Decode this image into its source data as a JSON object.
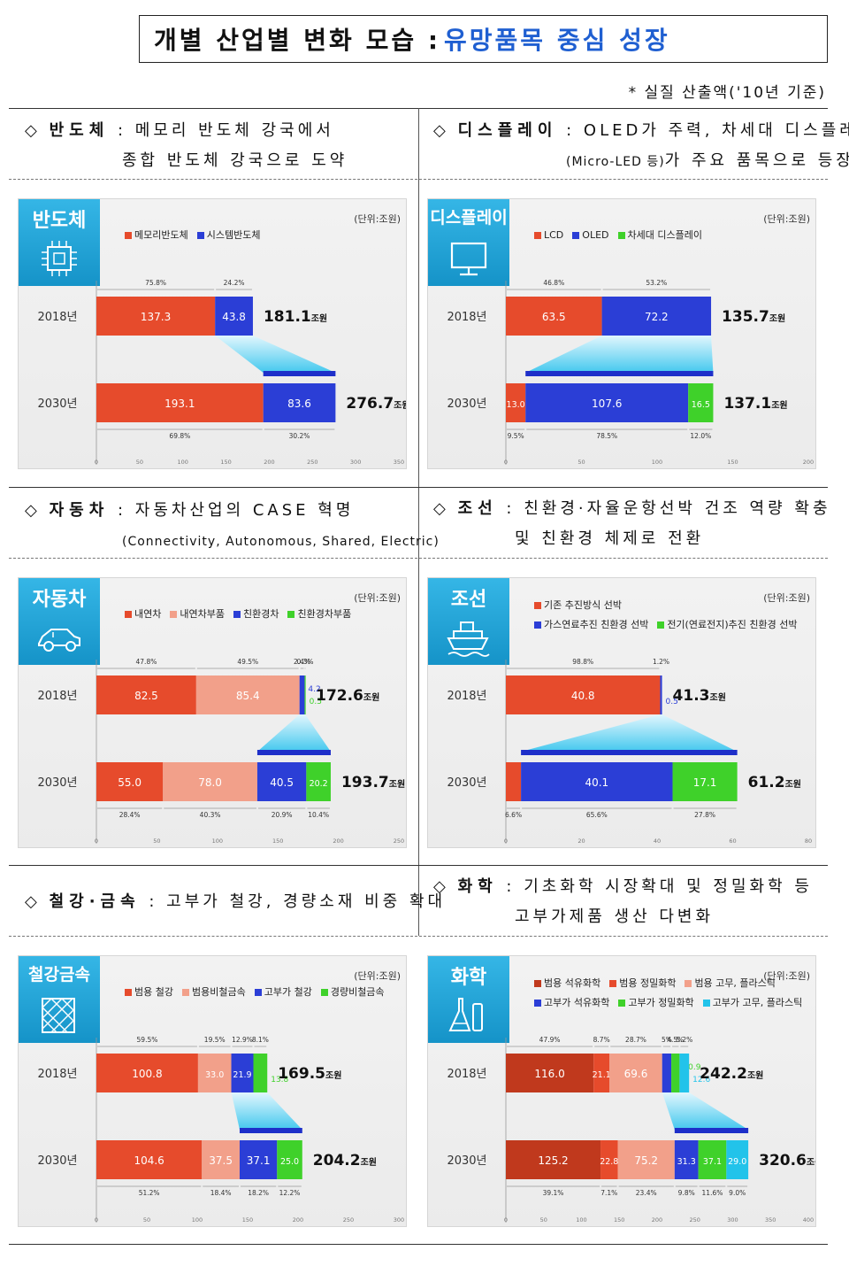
{
  "header": {
    "title_main": "개별 산업별 변화 모습 :",
    "title_highlight": "유망품목 중심 성장",
    "note": "* 실질 산출액('10년 기준)"
  },
  "colors": {
    "accent": "#1f5fd1",
    "badge": "#1a9fd6",
    "red": "#e64b2c",
    "salmon": "#f2a08a",
    "blue": "#2b3ed6",
    "green": "#3fd12a",
    "cyan": "#22c3ea",
    "darkred": "#c0391d"
  },
  "sections": [
    {
      "name": "반도체",
      "line1": "메모리 반도체 강국에서",
      "line2": "종합 반도체 강국으로 도약"
    },
    {
      "name": "디스플레이",
      "line1": "OLED가 주력, 차세대 디스플레이",
      "line2_small": "(Micro-LED 등)",
      "line2": "가 주요 품목으로 등장"
    },
    {
      "name": "자동차",
      "line1": "자동차산업의 CASE 혁명",
      "line2": "(Connectivity, Autonomous, Shared, Electric)"
    },
    {
      "name": "조선",
      "line1": "친환경·자율운항선박 건조 역량 확충",
      "line2": "및 친환경 체제로 전환"
    },
    {
      "name": "철강·금속",
      "line1": "고부가 철강, 경량소재 비중 확대",
      "line2": ""
    },
    {
      "name": "화학",
      "line1": "기초화학 시장확대 및 정밀화학 등",
      "line2": "고부가제품 생산 다변화"
    }
  ],
  "chart_data": [
    {
      "type": "bar",
      "badge": "반도체",
      "icon": "chip-icon",
      "unit": "(단위:조원)",
      "xmax": 350,
      "ticks": [
        0,
        50,
        100,
        150,
        200,
        250,
        300,
        350
      ],
      "series": [
        {
          "name": "메모리반도체",
          "color": "red"
        },
        {
          "name": "시스템반도체",
          "color": "blue"
        }
      ],
      "legend_rows": [
        [
          0,
          1
        ]
      ],
      "rows": [
        {
          "year": "2018년",
          "total": "181.1",
          "values": [
            137.3,
            43.8
          ],
          "labels": [
            "137.3",
            "43.8"
          ],
          "pcts": [
            "75.8%",
            "24.2%"
          ],
          "pct_pos": "top"
        },
        {
          "year": "2030년",
          "total": "276.7",
          "values": [
            193.1,
            83.6
          ],
          "labels": [
            "193.1",
            "83.6"
          ],
          "pcts": [
            "69.8%",
            "30.2%"
          ],
          "pct_pos": "bottom"
        }
      ],
      "total_suffix": "조원",
      "funnel": [
        1,
        1
      ]
    },
    {
      "type": "bar",
      "badge": "디스플레이",
      "icon": "monitor-icon",
      "unit": "(단위:조원)",
      "xmax": 200,
      "ticks": [
        0,
        50,
        100,
        150,
        200
      ],
      "series": [
        {
          "name": "LCD",
          "color": "red"
        },
        {
          "name": "OLED",
          "color": "blue"
        },
        {
          "name": "차세대 디스플레이",
          "color": "green"
        }
      ],
      "legend_rows": [
        [
          0,
          1,
          2
        ]
      ],
      "rows": [
        {
          "year": "2018년",
          "total": "135.7",
          "values": [
            63.5,
            72.2
          ],
          "labels": [
            "63.5",
            "72.2"
          ],
          "pcts": [
            "46.8%",
            "53.2%"
          ],
          "pct_pos": "top"
        },
        {
          "year": "2030년",
          "total": "137.1",
          "values": [
            13.0,
            107.6,
            16.5
          ],
          "labels": [
            "13.0",
            "107.6",
            "16.5"
          ],
          "pcts": [
            "9.5%",
            "78.5%",
            "12.0%"
          ],
          "pct_pos": "bottom"
        }
      ],
      "total_suffix": "조원",
      "funnel": [
        1,
        2
      ]
    },
    {
      "type": "bar",
      "badge": "자동차",
      "icon": "car-icon",
      "unit": "(단위:조원)",
      "xmax": 250,
      "ticks": [
        0,
        50,
        100,
        150,
        200,
        250
      ],
      "series": [
        {
          "name": "내연차",
          "color": "red"
        },
        {
          "name": "내연차부품",
          "color": "salmon"
        },
        {
          "name": "친환경차",
          "color": "blue"
        },
        {
          "name": "친환경차부품",
          "color": "green"
        }
      ],
      "legend_rows": [
        [
          0,
          1,
          2,
          3
        ]
      ],
      "rows": [
        {
          "year": "2018년",
          "total": "172.6",
          "values": [
            82.5,
            85.4,
            4.2,
            0.5
          ],
          "labels": [
            "82.5",
            "85.4",
            "4.2",
            "0.5"
          ],
          "pcts": [
            "47.8%",
            "49.5%",
            "2.4%",
            "0.3%"
          ],
          "pct_pos": "top"
        },
        {
          "year": "2030년",
          "total": "193.7",
          "values": [
            55.0,
            78.0,
            40.5,
            20.2
          ],
          "labels": [
            "55.0",
            "78.0",
            "40.5",
            "20.2"
          ],
          "pcts": [
            "28.4%",
            "40.3%",
            "20.9%",
            "10.4%"
          ],
          "pct_pos": "bottom"
        }
      ],
      "total_suffix": "조원",
      "funnel": [
        2,
        3
      ]
    },
    {
      "type": "bar",
      "badge": "조선",
      "icon": "ship-icon",
      "unit": "(단위:조원)",
      "xmax": 80,
      "ticks": [
        0,
        20,
        40,
        60,
        80
      ],
      "series": [
        {
          "name": "기존 추진방식 선박",
          "color": "red"
        },
        {
          "name": "가스연료추진 친환경 선박",
          "color": "blue"
        },
        {
          "name": "전기(연료전지)추진 친환경 선박",
          "color": "green"
        }
      ],
      "legend_rows": [
        [
          0
        ],
        [
          1,
          2
        ]
      ],
      "rows": [
        {
          "year": "2018년",
          "total": "41.3",
          "values": [
            40.8,
            0.5
          ],
          "labels": [
            "40.8",
            "0.5"
          ],
          "pcts": [
            "98.8%",
            "1.2%"
          ],
          "pct_pos": "top"
        },
        {
          "year": "2030년",
          "total": "61.2",
          "values": [
            4.0,
            40.1,
            17.1
          ],
          "labels": [
            "4.0",
            "40.1",
            "17.1"
          ],
          "pcts": [
            "6.6%",
            "65.6%",
            "27.8%"
          ],
          "pct_pos": "bottom"
        }
      ],
      "total_suffix": "조원",
      "funnel": [
        1,
        2
      ]
    },
    {
      "type": "bar",
      "badge": "철강금속",
      "icon": "metal-icon",
      "unit": "(단위:조원)",
      "xmax": 300,
      "ticks": [
        0,
        50,
        100,
        150,
        200,
        250,
        300
      ],
      "series": [
        {
          "name": "범용 철강",
          "color": "red"
        },
        {
          "name": "범용비철금속",
          "color": "salmon"
        },
        {
          "name": "고부가 철강",
          "color": "blue"
        },
        {
          "name": "경량비철금속",
          "color": "green"
        }
      ],
      "legend_rows": [
        [
          0,
          1,
          2,
          3
        ]
      ],
      "rows": [
        {
          "year": "2018년",
          "total": "169.5",
          "values": [
            100.8,
            33.0,
            21.9,
            13.8
          ],
          "labels": [
            "100.8",
            "33.0",
            "21.9",
            "13.8"
          ],
          "pcts": [
            "59.5%",
            "19.5%",
            "12.9%",
            "8.1%"
          ],
          "pct_pos": "top"
        },
        {
          "year": "2030년",
          "total": "204.2",
          "values": [
            104.6,
            37.5,
            37.1,
            25.0
          ],
          "labels": [
            "104.6",
            "37.5",
            "37.1",
            "25.0"
          ],
          "pcts": [
            "51.2%",
            "18.4%",
            "18.2%",
            "12.2%"
          ],
          "pct_pos": "bottom"
        }
      ],
      "total_suffix": "조원",
      "funnel": [
        2,
        3
      ]
    },
    {
      "type": "bar",
      "badge": "화학",
      "icon": "flask-icon",
      "unit": "(단위:조원)",
      "xmax": 400,
      "ticks": [
        0,
        50,
        100,
        150,
        200,
        250,
        300,
        350,
        400
      ],
      "series": [
        {
          "name": "범용 석유화학",
          "color": "darkred"
        },
        {
          "name": "범용 정밀화학",
          "color": "red"
        },
        {
          "name": "범용 고무, 플라스틱",
          "color": "salmon"
        },
        {
          "name": "고부가 석유화학",
          "color": "blue"
        },
        {
          "name": "고부가 정밀화학",
          "color": "green"
        },
        {
          "name": "고부가 고무, 플라스틱",
          "color": "cyan"
        }
      ],
      "legend_rows": [
        [
          0,
          1,
          2
        ],
        [
          3,
          4,
          5
        ]
      ],
      "rows": [
        {
          "year": "2018년",
          "total": "242.2",
          "values": [
            116.0,
            21.1,
            69.6,
            12.1,
            10.9,
            12.6
          ],
          "labels": [
            "116.0",
            "21.1",
            "69.6",
            "12",
            "10.9",
            "12.6"
          ],
          "pcts": [
            "47.9%",
            "8.7%",
            "28.7%",
            "5%",
            "4.5%",
            "5.2%"
          ],
          "pct_pos": "top"
        },
        {
          "year": "2030년",
          "total": "320.6",
          "values": [
            125.2,
            22.8,
            75.2,
            31.3,
            37.1,
            29.0
          ],
          "labels": [
            "125.2",
            "22.8",
            "75.2",
            "31.3",
            "37.1",
            "29.0"
          ],
          "pcts": [
            "39.1%",
            "7.1%",
            "23.4%",
            "9.8%",
            "11.6%",
            "9.0%"
          ],
          "pct_pos": "bottom"
        }
      ],
      "total_suffix": "조원",
      "funnel": [
        3,
        5
      ]
    }
  ]
}
